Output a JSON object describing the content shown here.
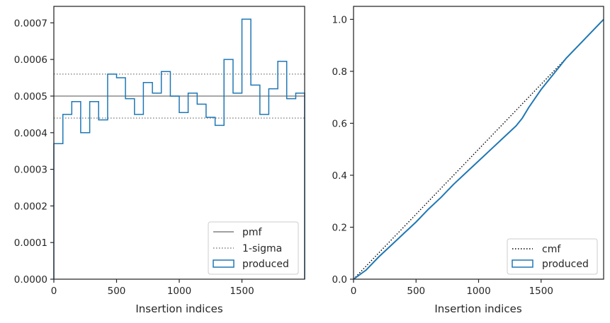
{
  "chart_data": [
    {
      "type": "step-histogram",
      "xlabel": "Insertion indices",
      "ylabel": "",
      "xlim": [
        0,
        2000
      ],
      "ylim": [
        0,
        0.000745
      ],
      "x_ticks": [
        0,
        500,
        1000,
        1500
      ],
      "x_tick_labels": [
        "0",
        "500",
        "1000",
        "1500"
      ],
      "y_ticks": [
        0,
        0.0001,
        0.0002,
        0.0003,
        0.0004,
        0.0005,
        0.0006,
        0.0007
      ],
      "y_tick_labels": [
        "0.0000",
        "0.0001",
        "0.0002",
        "0.0003",
        "0.0004",
        "0.0005",
        "0.0006",
        "0.0007"
      ],
      "bin_edges": [
        0,
        72,
        143,
        214,
        286,
        357,
        429,
        500,
        571,
        643,
        714,
        786,
        857,
        929,
        1000,
        1071,
        1143,
        1214,
        1286,
        1357,
        1429,
        1500,
        1571,
        1643,
        1714,
        1786,
        1857,
        1929,
        2000
      ],
      "values": [
        0.00037,
        0.00045,
        0.000485,
        0.0004,
        0.000485,
        0.000435,
        0.00056,
        0.00055,
        0.000493,
        0.00045,
        0.000537,
        0.000508,
        0.000567,
        0.0005,
        0.000455,
        0.000508,
        0.000478,
        0.000442,
        0.00042,
        0.0006,
        0.000508,
        0.00071,
        0.00053,
        0.00045,
        0.00052,
        0.000595,
        0.000493,
        0.000508
      ],
      "reference_lines": [
        {
          "name": "pmf",
          "y": 0.0005,
          "style": "solid",
          "color": "#808080"
        },
        {
          "name": "1-sigma",
          "y": 0.00056,
          "style": "dotted",
          "color": "#808080"
        },
        {
          "name": "1-sigma",
          "y": 0.00044,
          "style": "dotted",
          "color": "#808080"
        }
      ],
      "series": [
        {
          "name": "produced",
          "color": "#1f77b4"
        }
      ],
      "legend": {
        "placement": "bottom-right",
        "entries": [
          "pmf",
          "1-sigma",
          "produced"
        ]
      },
      "grid": false
    },
    {
      "type": "line",
      "xlabel": "Insertion indices",
      "ylabel": "",
      "xlim": [
        0,
        2000
      ],
      "ylim": [
        0,
        1.05
      ],
      "x_ticks": [
        0,
        500,
        1000,
        1500
      ],
      "x_tick_labels": [
        "0",
        "500",
        "1000",
        "1500"
      ],
      "y_ticks": [
        0,
        0.2,
        0.4,
        0.6,
        0.8,
        1.0
      ],
      "y_tick_labels": [
        "0.0",
        "0.2",
        "0.4",
        "0.6",
        "0.8",
        "1.0"
      ],
      "series": [
        {
          "name": "cmf",
          "style": "dotted",
          "color": "#000000",
          "x": [
            0,
            2000
          ],
          "y": [
            0,
            1.0
          ]
        },
        {
          "name": "produced",
          "style": "solid",
          "color": "#1f77b4",
          "x": [
            0,
            100,
            200,
            300,
            400,
            500,
            600,
            700,
            800,
            900,
            1000,
            1100,
            1200,
            1300,
            1350,
            1400,
            1500,
            1600,
            1700,
            1800,
            1900,
            2000
          ],
          "y": [
            0,
            0.035,
            0.085,
            0.13,
            0.175,
            0.22,
            0.27,
            0.315,
            0.365,
            0.41,
            0.455,
            0.5,
            0.545,
            0.59,
            0.62,
            0.66,
            0.73,
            0.79,
            0.85,
            0.9,
            0.95,
            1.0
          ]
        }
      ],
      "legend": {
        "placement": "bottom-right",
        "entries": [
          "cmf",
          "produced"
        ]
      },
      "grid": false
    }
  ]
}
